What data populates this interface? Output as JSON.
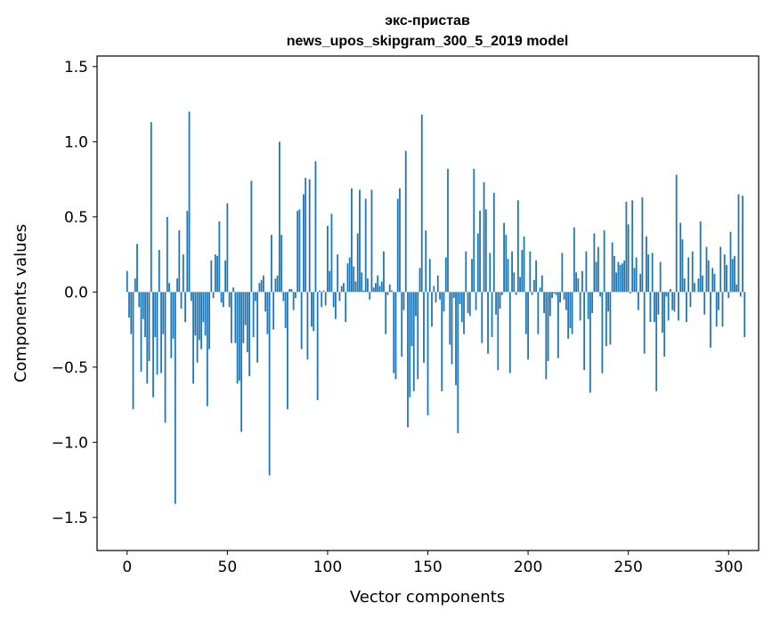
{
  "chart_data": {
    "type": "bar",
    "title": "экс-пристав",
    "subtitle": "news_upos_skipgram_300_5_2019 model",
    "xlabel": "Vector components",
    "ylabel": "Components values",
    "xlim": [
      -15,
      315
    ],
    "ylim": [
      -1.72,
      1.57
    ],
    "xticks": [
      0,
      50,
      100,
      150,
      200,
      250,
      300
    ],
    "yticks": [
      -1.5,
      -1.0,
      -0.5,
      0.0,
      0.5,
      1.0,
      1.5
    ],
    "xtick_labels": [
      "0",
      "50",
      "100",
      "150",
      "200",
      "250",
      "300"
    ],
    "ytick_labels": [
      "−1.5",
      "−1.0",
      "−0.5",
      "0.0",
      "0.5",
      "1.0",
      "1.5"
    ],
    "bar_color": "#1f77b4",
    "grid": false,
    "values": [
      0.14,
      -0.17,
      -0.28,
      -0.78,
      0.09,
      0.32,
      -0.1,
      -0.53,
      -0.18,
      -0.3,
      -0.61,
      -0.46,
      1.13,
      -0.7,
      -0.3,
      -0.55,
      0.28,
      -0.54,
      -0.28,
      -0.87,
      0.5,
      0.06,
      -0.44,
      -0.31,
      -1.41,
      0.09,
      0.41,
      -0.11,
      0.25,
      -0.2,
      0.54,
      1.2,
      -0.06,
      -0.61,
      -0.29,
      -0.47,
      -0.32,
      -0.38,
      -0.2,
      -0.29,
      -0.76,
      -0.38,
      0.21,
      -0.04,
      0.25,
      0.24,
      0.47,
      -0.07,
      -0.1,
      0.21,
      0.59,
      -0.1,
      -0.34,
      0.03,
      -0.34,
      -0.61,
      -0.59,
      -0.93,
      -0.34,
      -0.22,
      -0.4,
      -0.56,
      0.74,
      -0.3,
      -0.06,
      -0.47,
      0.06,
      0.08,
      0.11,
      -0.13,
      -0.28,
      -1.22,
      0.38,
      -0.25,
      0.09,
      0.11,
      1.0,
      0.38,
      -0.06,
      -0.24,
      -0.78,
      0.02,
      0.02,
      -0.12,
      -0.04,
      0.54,
      0.55,
      -0.38,
      0.65,
      0.76,
      -0.45,
      0.75,
      -0.23,
      -0.26,
      0.87,
      -0.72,
      0.01,
      -0.1,
      0.01,
      -0.09,
      0.44,
      0.14,
      0.52,
      -0.1,
      -0.18,
      0.25,
      -0.06,
      0.04,
      0.06,
      -0.2,
      0.19,
      0.23,
      0.69,
      0.17,
      0.07,
      0.39,
      0.68,
      0.13,
      0.01,
      0.62,
      0.09,
      -0.05,
      0.68,
      0.03,
      0.06,
      0.11,
      0.04,
      0.07,
      0.27,
      -0.28,
      -0.02,
      0.05,
      0.01,
      -0.54,
      -0.58,
      0.62,
      0.69,
      -0.43,
      -0.12,
      0.94,
      -0.9,
      -0.7,
      -0.36,
      -0.66,
      -0.16,
      -0.58,
      0.16,
      1.18,
      -0.47,
      0.41,
      -0.82,
      0.22,
      -0.23,
      0.04,
      -0.07,
      0.11,
      -0.05,
      -0.66,
      -0.13,
      0.23,
      0.82,
      -0.35,
      -0.48,
      -0.04,
      -0.62,
      -0.94,
      -0.08,
      -0.2,
      -0.28,
      0.27,
      -0.14,
      -0.16,
      0.22,
      0.82,
      -0.12,
      0.39,
      0.54,
      -0.34,
      0.73,
      0.55,
      -0.41,
      0.26,
      -0.3,
      0.66,
      -0.15,
      -0.52,
      -0.11,
      -0.02,
      0.46,
      0.38,
      0.22,
      -0.54,
      0.27,
      0.13,
      -0.02,
      0.61,
      0.1,
      0.28,
      0.37,
      -0.28,
      -0.45,
      0.27,
      -0.02,
      0.08,
      0.21,
      -0.28,
      0.03,
      0.11,
      -0.14,
      -0.58,
      -0.46,
      -0.16,
      -0.04,
      -0.01,
      -0.02,
      -0.44,
      -0.07,
      0.26,
      -0.05,
      -0.12,
      -0.31,
      -0.24,
      -0.28,
      0.43,
      0.13,
      0.09,
      -0.19,
      0.14,
      -0.52,
      0.27,
      -0.18,
      -0.67,
      -0.14,
      0.39,
      0.2,
      0.3,
      -0.03,
      -0.54,
      0.41,
      -0.36,
      -0.13,
      -0.35,
      0.33,
      0.24,
      0.13,
      0.2,
      0.18,
      0.19,
      0.21,
      0.6,
      0.45,
      -0.01,
      0.61,
      0.16,
      0.23,
      -0.12,
      0.12,
      0.63,
      -0.41,
      0.37,
      0.25,
      -0.2,
      0.26,
      -0.2,
      -0.66,
      -0.15,
      0.2,
      -0.27,
      -0.43,
      -0.03,
      -0.19,
      0.02,
      -0.12,
      -0.13,
      0.78,
      -0.19,
      0.46,
      0.35,
      0.09,
      -0.2,
      0.23,
      -0.1,
      0.27,
      0.06,
      0.0,
      0.09,
      0.47,
      0.11,
      -0.15,
      0.3,
      0.21,
      -0.37,
      0.16,
      0.12,
      -0.23,
      -0.12,
      0.3,
      -0.23,
      0.25,
      0.18,
      -0.04,
      0.4,
      0.22,
      0.24,
      0.05,
      0.65,
      -0.03,
      0.64,
      -0.3
    ]
  }
}
